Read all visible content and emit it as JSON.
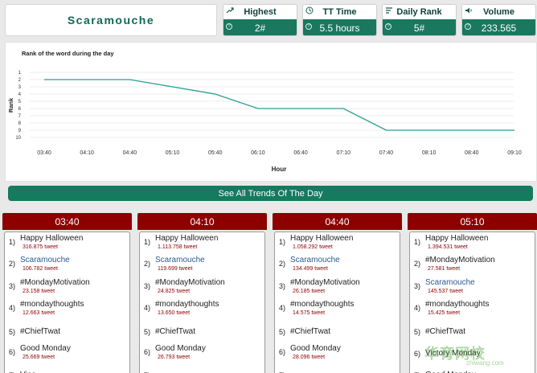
{
  "header": {
    "title": "Scaramouche"
  },
  "stats": [
    {
      "label": "Highest",
      "value": "2#",
      "icon": "trend-up-icon"
    },
    {
      "label": "TT Time",
      "value": "5.5 hours",
      "icon": "clock-icon"
    },
    {
      "label": "Daily Rank",
      "value": "5#",
      "icon": "sort-icon"
    },
    {
      "label": "Volume",
      "value": "233.565",
      "icon": "speaker-icon"
    }
  ],
  "chart_data": {
    "type": "line",
    "title": "Rank of the word during the day",
    "xlabel": "Hour",
    "ylabel": "Rank",
    "x": [
      "03:40",
      "04:10",
      "04:40",
      "05:10",
      "05:40",
      "06:10",
      "06:40",
      "07:10",
      "07:40",
      "08:10",
      "08:40",
      "09:10"
    ],
    "yticks": [
      1,
      2,
      3,
      4,
      5,
      6,
      7,
      8,
      9,
      10
    ],
    "ylim": [
      1,
      10
    ],
    "y_inverted": true,
    "series": [
      {
        "values": [
          2,
          2,
          2,
          3,
          4,
          6,
          6,
          6,
          9,
          9,
          9,
          9
        ],
        "color": "#2a9d8f"
      }
    ],
    "grid": true
  },
  "see_all_label": "See All Trends Of The Day",
  "columns": [
    {
      "time": "03:40",
      "items": [
        {
          "rank": "1)",
          "name": "Happy Halloween",
          "tweets": "316.875 tweet"
        },
        {
          "rank": "2)",
          "name": "Scaramouche",
          "tweets": "106.782 tweet",
          "highlight": true
        },
        {
          "rank": "3)",
          "name": "#MondayMotivation",
          "tweets": "23.158 tweet"
        },
        {
          "rank": "4)",
          "name": "#mondaythoughts",
          "tweets": "12.663 tweet"
        },
        {
          "rank": "5)",
          "name": "#ChiefTwat",
          "tweets": ""
        },
        {
          "rank": "6)",
          "name": "Good Monday",
          "tweets": "25.669 tweet"
        },
        {
          "rank": "7)",
          "name": "Vine",
          "tweets": ""
        }
      ]
    },
    {
      "time": "04:10",
      "items": [
        {
          "rank": "1)",
          "name": "Happy Halloween",
          "tweets": "1.113.758 tweet"
        },
        {
          "rank": "2)",
          "name": "Scaramouche",
          "tweets": "119.699 tweet",
          "highlight": true
        },
        {
          "rank": "3)",
          "name": "#MondayMotivation",
          "tweets": "24.825 tweet"
        },
        {
          "rank": "4)",
          "name": "#mondaythoughts",
          "tweets": "13.650 tweet"
        },
        {
          "rank": "5)",
          "name": "#ChiefTwat",
          "tweets": ""
        },
        {
          "rank": "6)",
          "name": "Good Monday",
          "tweets": "26.793 tweet"
        },
        {
          "rank": "7)",
          "name": "",
          "tweets": ""
        }
      ]
    },
    {
      "time": "04:40",
      "items": [
        {
          "rank": "1)",
          "name": "Happy Halloween",
          "tweets": "1.058.292 tweet"
        },
        {
          "rank": "2)",
          "name": "Scaramouche",
          "tweets": "134.499 tweet",
          "highlight": true
        },
        {
          "rank": "3)",
          "name": "#MondayMotivation",
          "tweets": "26.185 tweet"
        },
        {
          "rank": "4)",
          "name": "#mondaythoughts",
          "tweets": "14.575 tweet"
        },
        {
          "rank": "5)",
          "name": "#ChiefTwat",
          "tweets": ""
        },
        {
          "rank": "6)",
          "name": "Good Monday",
          "tweets": "28.096 tweet"
        },
        {
          "rank": "7)",
          "name": "",
          "tweets": ""
        }
      ]
    },
    {
      "time": "05:10",
      "items": [
        {
          "rank": "1)",
          "name": "Happy Halloween",
          "tweets": "1.394.531 tweet"
        },
        {
          "rank": "2)",
          "name": "#MondayMotivation",
          "tweets": "27.581 tweet"
        },
        {
          "rank": "3)",
          "name": "Scaramouche",
          "tweets": "145.537 tweet",
          "highlight": true
        },
        {
          "rank": "4)",
          "name": "#mondaythoughts",
          "tweets": "15.425 tweet"
        },
        {
          "rank": "5)",
          "name": "#ChiefTwat",
          "tweets": ""
        },
        {
          "rank": "6)",
          "name": "Victory Monday",
          "tweets": ""
        },
        {
          "rank": "7)",
          "name": "Good Monday",
          "tweets": ""
        }
      ]
    }
  ],
  "watermark": {
    "text": "华育网校",
    "sub": "zhiwang.com"
  }
}
